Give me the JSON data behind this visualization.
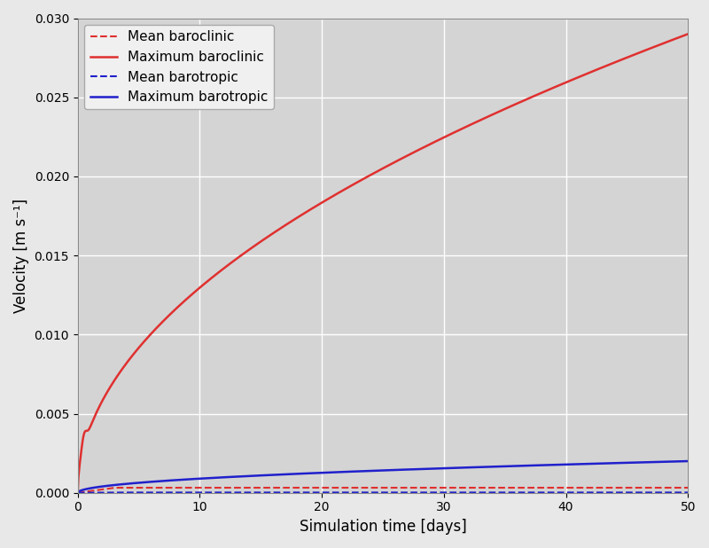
{
  "title": "",
  "xlabel": "Simulation time [days]",
  "ylabel": "Velocity [m s⁻¹]",
  "xlim": [
    0,
    50
  ],
  "ylim": [
    0,
    0.03
  ],
  "yticks": [
    0.0,
    0.005,
    0.01,
    0.015,
    0.02,
    0.025,
    0.03
  ],
  "xticks": [
    0,
    10,
    20,
    30,
    40,
    50
  ],
  "plot_bg_color": "#d4d4d4",
  "fig_bg_color": "#e8e8e8",
  "grid_color": "#ffffff",
  "legend_bg": "#f0f0f0",
  "legend_entries": [
    {
      "label": "Mean baroclinic",
      "color": "#e03030",
      "linestyle": "dashed",
      "linewidth": 1.5
    },
    {
      "label": "Maximum baroclinic",
      "color": "#e03030",
      "linestyle": "solid",
      "linewidth": 1.8
    },
    {
      "label": "Mean barotropic",
      "color": "#2020cc",
      "linestyle": "dashed",
      "linewidth": 1.5
    },
    {
      "label": "Maximum barotropic",
      "color": "#2020cc",
      "linestyle": "solid",
      "linewidth": 1.8
    }
  ],
  "n_points": 1000,
  "mean_baroclinic_value": 0.00032,
  "mean_barotropic_value": 1.8e-05
}
